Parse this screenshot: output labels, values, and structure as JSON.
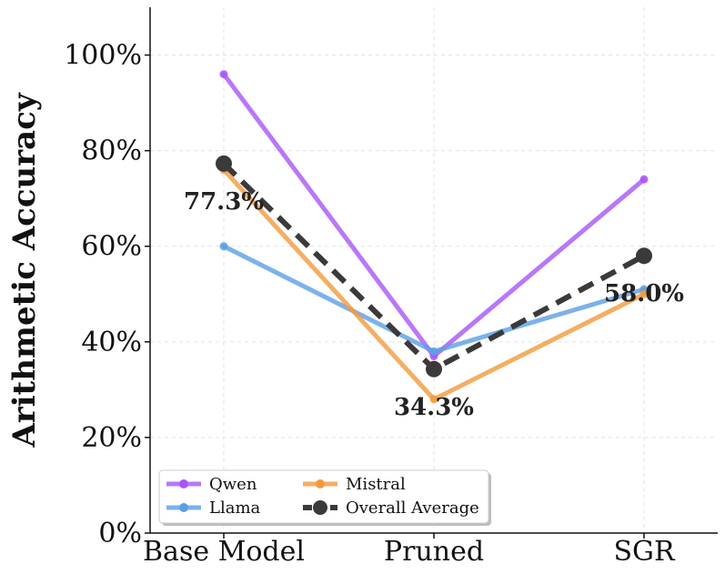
{
  "chart_data": {
    "type": "line",
    "categories": [
      "Base Model",
      "Pruned",
      "SGR"
    ],
    "ylabel": "Arithmetic Accuracy",
    "ylim": [
      0,
      110
    ],
    "yticks": [
      0,
      20,
      40,
      60,
      80,
      100
    ],
    "ytick_labels": [
      "0%",
      "20%",
      "40%",
      "60%",
      "80%",
      "100%"
    ],
    "grid": true,
    "legend_position": "lower-left",
    "series": [
      {
        "name": "Qwen",
        "values": [
          96,
          37,
          74
        ],
        "color": "#a855f7"
      },
      {
        "name": "Llama",
        "values": [
          60,
          38,
          51
        ],
        "color": "#5b9ee6"
      },
      {
        "name": "Mistral",
        "values": [
          76,
          28,
          50
        ],
        "color": "#f29a3c"
      },
      {
        "name": "Overall Average",
        "values": [
          77.3,
          34.3,
          58.0
        ],
        "color": "#3a3a3a",
        "dashed": true
      }
    ],
    "annotations": [
      "77.3%",
      "34.3%",
      "58.0%"
    ]
  }
}
